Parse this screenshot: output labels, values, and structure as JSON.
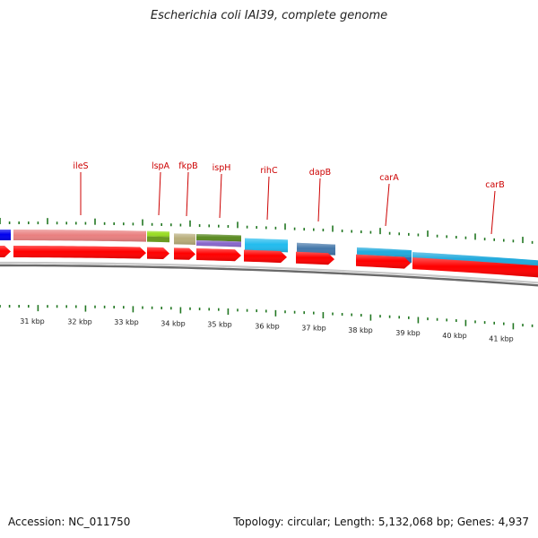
{
  "title": "Escherichia coli IAI39, complete genome",
  "footer": {
    "accession": "Accession: NC_011750",
    "summary": "Topology: circular; Length: 5,132,068 bp; Genes: 4,937"
  },
  "colors": {
    "label": "#cc0000",
    "tick": "#227722",
    "forward_cds": "#ff0000",
    "backbone": "#888888"
  },
  "kbp_labels": [
    "31 kbp",
    "32 kbp",
    "33 kbp",
    "34 kbp",
    "35 kbp",
    "36 kbp",
    "37 kbp",
    "38 kbp",
    "39 kbp",
    "40 kbp",
    "41 kbp"
  ],
  "gene_labels": [
    "ileS",
    "lspA",
    "fkpB",
    "ispH",
    "rihC",
    "dapB",
    "carA",
    "carB"
  ],
  "top_features": [
    {
      "name": "feature-left-edge",
      "color": "#0000ee"
    },
    {
      "name": "feature-ileS",
      "color": "#e98080"
    },
    {
      "name": "feature-lspA",
      "color": "#99dd22"
    },
    {
      "name": "feature-fkpB",
      "color": "#b8ad7a"
    },
    {
      "name": "feature-ispH-upper",
      "color": "#5a8a22"
    },
    {
      "name": "feature-ispH-lower",
      "color": "#8866cc"
    },
    {
      "name": "feature-rihC",
      "color": "#22bbee"
    },
    {
      "name": "feature-dapB",
      "color": "#4477aa"
    },
    {
      "name": "feature-carA-upper",
      "color": "#22aadd"
    },
    {
      "name": "feature-carA-lower",
      "color": "#3366aa"
    },
    {
      "name": "feature-carB-upper",
      "color": "#22aadd"
    },
    {
      "name": "feature-carB-lower",
      "color": "#3366aa"
    }
  ]
}
